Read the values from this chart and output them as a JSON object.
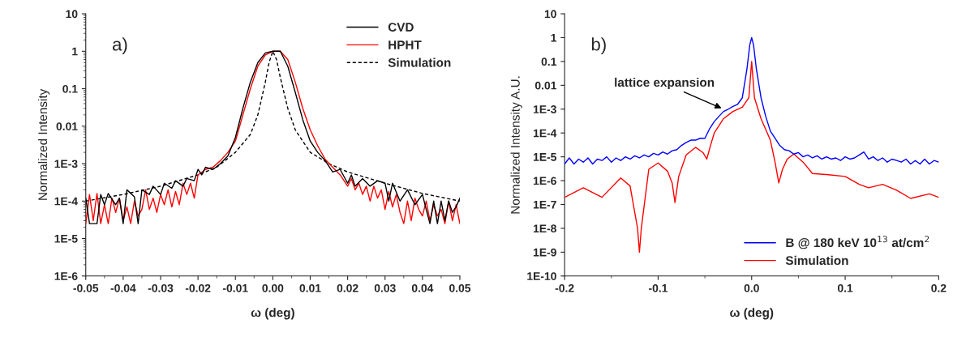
{
  "chart_data": [
    {
      "type": "line",
      "xlabel": "ω (deg)",
      "ylabel": "Normalized Intensity",
      "annotations": [
        "a)"
      ],
      "legend": "top right",
      "log": "y",
      "xlim": [
        -0.05,
        0.05
      ],
      "xticks": [
        {
          "value": -0.05,
          "label": "-0.05"
        },
        {
          "value": -0.04,
          "label": "-0.04"
        },
        {
          "value": -0.03,
          "label": "-0.03"
        },
        {
          "value": -0.02,
          "label": "-0.02"
        },
        {
          "value": -0.01,
          "label": "-0.01"
        },
        {
          "value": 0,
          "label": "0.00"
        },
        {
          "value": 0.01,
          "label": "0.01"
        },
        {
          "value": 0.02,
          "label": "0.02"
        },
        {
          "value": 0.03,
          "label": "0.03"
        },
        {
          "value": 0.04,
          "label": "0.04"
        },
        {
          "value": 0.05,
          "label": "0.05"
        }
      ],
      "ylim": [
        1e-06,
        10
      ],
      "yticks": [
        {
          "value": 1e-06,
          "label": "1E-6"
        },
        {
          "value": 1e-05,
          "label": "1E-5"
        },
        {
          "value": 0.0001,
          "label": "1E-4"
        },
        {
          "value": 0.001,
          "label": "1E-3"
        },
        {
          "value": 0.01,
          "label": "0.01"
        },
        {
          "value": 0.1,
          "label": "0.1"
        },
        {
          "value": 1,
          "label": "1"
        },
        {
          "value": 10,
          "label": "10"
        }
      ],
      "series": [
        {
          "name": "CVD",
          "color": "#000000",
          "line_style": "solid",
          "x": [
            -0.05,
            -0.049,
            -0.047,
            -0.046,
            -0.045,
            -0.044,
            -0.042,
            -0.041,
            -0.04,
            -0.039,
            -0.037,
            -0.036,
            -0.035,
            -0.033,
            -0.032,
            -0.03,
            -0.029,
            -0.027,
            -0.026,
            -0.024,
            -0.023,
            -0.021,
            -0.02,
            -0.019,
            -0.018,
            -0.016,
            -0.014,
            -0.012,
            -0.01,
            -0.008,
            -0.006,
            -0.004,
            -0.002,
            0,
            0.002,
            0.004,
            0.006,
            0.008,
            0.01,
            0.012,
            0.014,
            0.016,
            0.018,
            0.02,
            0.021,
            0.022,
            0.024,
            0.026,
            0.028,
            0.03,
            0.031,
            0.032,
            0.034,
            0.036,
            0.038,
            0.04,
            0.041,
            0.042,
            0.043,
            0.044,
            0.045,
            0.046,
            0.047,
            0.048,
            0.049,
            0.05
          ],
          "values": [
            0.00012,
            2.5e-05,
            2.5e-05,
            0.00015,
            8e-05,
            0.00016,
            8e-05,
            0.00012,
            2.5e-05,
            0.0002,
            0.00013,
            2.5e-05,
            0.0002,
            0.00015,
            0.00025,
            0.00015,
            0.0003,
            0.00022,
            0.00035,
            0.00025,
            0.0004,
            0.00035,
            0.0007,
            0.0005,
            0.0008,
            0.0007,
            0.001,
            0.0016,
            0.005,
            0.03,
            0.15,
            0.5,
            0.9,
            1,
            1,
            0.4,
            0.08,
            0.015,
            0.004,
            0.002,
            0.0012,
            0.0006,
            0.0007,
            0.0003,
            0.0005,
            0.00025,
            0.0004,
            0.00025,
            0.00035,
            0.0003,
            0.0001,
            0.0003,
            0.0001,
            0.0002,
            8e-05,
            0.00015,
            6e-05,
            2.5e-05,
            0.0001,
            2.5e-05,
            0.0001,
            3e-05,
            0.0001,
            5e-05,
            7e-05,
            0.00012
          ]
        },
        {
          "name": "HPHT",
          "color": "#ff0000",
          "line_style": "solid",
          "x": [
            -0.05,
            -0.049,
            -0.048,
            -0.047,
            -0.046,
            -0.045,
            -0.044,
            -0.043,
            -0.042,
            -0.041,
            -0.04,
            -0.039,
            -0.038,
            -0.037,
            -0.036,
            -0.035,
            -0.034,
            -0.033,
            -0.032,
            -0.031,
            -0.03,
            -0.029,
            -0.028,
            -0.027,
            -0.026,
            -0.025,
            -0.024,
            -0.023,
            -0.022,
            -0.021,
            -0.02,
            -0.018,
            -0.016,
            -0.014,
            -0.012,
            -0.01,
            -0.008,
            -0.006,
            -0.004,
            -0.002,
            0,
            0.002,
            0.004,
            0.006,
            0.008,
            0.01,
            0.012,
            0.014,
            0.016,
            0.018,
            0.02,
            0.021,
            0.022,
            0.023,
            0.024,
            0.025,
            0.026,
            0.027,
            0.028,
            0.029,
            0.03,
            0.031,
            0.032,
            0.033,
            0.034,
            0.035,
            0.036,
            0.037,
            0.038,
            0.039,
            0.04,
            0.041,
            0.042,
            0.043,
            0.044,
            0.045,
            0.046,
            0.047,
            0.048,
            0.049,
            0.05
          ],
          "values": [
            2.5e-05,
            0.00015,
            3e-05,
            0.00016,
            2.5e-05,
            8e-05,
            2.5e-05,
            0.00012,
            5e-05,
            0.00012,
            3e-05,
            7e-05,
            2.5e-05,
            0.0001,
            4e-05,
            6e-05,
            0.0002,
            6e-05,
            0.00012,
            5e-05,
            0.00015,
            8e-05,
            0.0002,
            7e-05,
            0.00018,
            8e-05,
            0.0003,
            0.00015,
            0.0003,
            0.00012,
            0.0005,
            0.0007,
            0.0008,
            0.0012,
            0.002,
            0.004,
            0.02,
            0.1,
            0.4,
            0.8,
            1,
            1,
            0.6,
            0.15,
            0.03,
            0.008,
            0.003,
            0.0013,
            0.0008,
            0.0005,
            0.00025,
            0.0004,
            0.0002,
            0.0003,
            0.00015,
            0.00025,
            0.0001,
            0.00025,
            0.00012,
            0.0002,
            6e-05,
            0.00018,
            7e-05,
            0.00015,
            5e-05,
            2.5e-05,
            0.0001,
            3e-05,
            0.00012,
            6e-05,
            4e-05,
            0.0001,
            3e-05,
            8e-05,
            4e-05,
            6e-05,
            2.5e-05,
            0.0001,
            3e-05,
            8e-05,
            2.5e-05
          ]
        },
        {
          "name": "Simulation",
          "color": "#000000",
          "line_style": "dashed",
          "x": [
            -0.05,
            -0.04,
            -0.03,
            -0.02,
            -0.015,
            -0.01,
            -0.006,
            -0.004,
            -0.002,
            -0.001,
            0,
            0.001,
            0.002,
            0.004,
            0.006,
            0.01,
            0.015,
            0.02,
            0.03,
            0.04,
            0.05
          ],
          "values": [
            0.0001,
            0.00015,
            0.00025,
            0.0005,
            0.0008,
            0.002,
            0.006,
            0.02,
            0.15,
            0.5,
            1,
            0.6,
            0.2,
            0.03,
            0.008,
            0.002,
            0.001,
            0.0006,
            0.0003,
            0.00016,
            0.0001
          ]
        }
      ]
    },
    {
      "type": "line",
      "xlabel": "ω (deg)",
      "ylabel": "Normalized Intensity A.U.",
      "legend": "bottom right",
      "log": "y",
      "annotations": [
        "b)",
        {
          "text": "lattice expansion",
          "x": -0.03,
          "y": 0.001
        }
      ],
      "xlim": [
        -0.2,
        0.2
      ],
      "xticks": [
        {
          "value": -0.2,
          "label": "-0.2"
        },
        {
          "value": -0.1,
          "label": "-0.1"
        },
        {
          "value": 0,
          "label": "0.0"
        },
        {
          "value": 0.1,
          "label": "0.1"
        },
        {
          "value": 0.2,
          "label": "0.2"
        }
      ],
      "ylim": [
        1e-10,
        10
      ],
      "yticks": [
        {
          "value": 1e-10,
          "label": "1E-10"
        },
        {
          "value": 1e-09,
          "label": "1E-9"
        },
        {
          "value": 1e-08,
          "label": "1E-8"
        },
        {
          "value": 1e-07,
          "label": "1E-7"
        },
        {
          "value": 1e-06,
          "label": "1E-6"
        },
        {
          "value": 1e-05,
          "label": "1E-5"
        },
        {
          "value": 0.0001,
          "label": "1E-4"
        },
        {
          "value": 0.001,
          "label": "1E-3"
        },
        {
          "value": 0.01,
          "label": "0.01"
        },
        {
          "value": 0.1,
          "label": "0.1"
        },
        {
          "value": 1,
          "label": "1"
        },
        {
          "value": 10,
          "label": "10"
        }
      ],
      "series": [
        {
          "name": "B @ 180 keV 10$^{13}$ at/cm$^{2}$",
          "color": "#0000ff",
          "line_style": "solid",
          "x": [
            -0.2,
            -0.195,
            -0.19,
            -0.185,
            -0.18,
            -0.175,
            -0.17,
            -0.165,
            -0.16,
            -0.155,
            -0.15,
            -0.145,
            -0.14,
            -0.135,
            -0.13,
            -0.125,
            -0.12,
            -0.115,
            -0.11,
            -0.105,
            -0.1,
            -0.095,
            -0.09,
            -0.085,
            -0.08,
            -0.075,
            -0.07,
            -0.065,
            -0.06,
            -0.055,
            -0.05,
            -0.045,
            -0.04,
            -0.035,
            -0.03,
            -0.025,
            -0.02,
            -0.015,
            -0.01,
            -0.005,
            -0.002,
            0,
            0.002,
            0.005,
            0.01,
            0.015,
            0.02,
            0.025,
            0.03,
            0.035,
            0.04,
            0.045,
            0.05,
            0.055,
            0.06,
            0.065,
            0.07,
            0.075,
            0.08,
            0.085,
            0.09,
            0.095,
            0.1,
            0.105,
            0.11,
            0.115,
            0.12,
            0.125,
            0.13,
            0.135,
            0.14,
            0.145,
            0.15,
            0.155,
            0.16,
            0.165,
            0.17,
            0.175,
            0.18,
            0.185,
            0.19,
            0.195,
            0.2
          ],
          "values": [
            5e-06,
            9e-06,
            5e-06,
            8e-06,
            6e-06,
            9e-06,
            5e-06,
            8e-06,
            7e-06,
            1e-05,
            6e-06,
            9e-06,
            7e-06,
            1e-05,
            8e-06,
            1.1e-05,
            9e-06,
            1.2e-05,
            1e-05,
            1.4e-05,
            1.2e-05,
            1.6e-05,
            1.3e-05,
            1.8e-05,
            2e-05,
            3e-05,
            4e-05,
            5e-05,
            5e-05,
            6e-05,
            6e-05,
            0.00015,
            0.0003,
            0.0005,
            0.0008,
            0.001,
            0.0013,
            0.0016,
            0.003,
            0.05,
            0.5,
            1,
            0.5,
            0.05,
            0.003,
            0.0005,
            0.00012,
            6e-05,
            3e-05,
            2e-05,
            1.8e-05,
            1.3e-05,
            1.5e-05,
            1e-05,
            1.2e-05,
            9e-06,
            1.1e-05,
            8e-06,
            1e-05,
            8e-06,
            9e-06,
            7e-06,
            1e-05,
            8e-06,
            9e-06,
            1.2e-05,
            1.6e-05,
            8e-06,
            1e-05,
            7e-06,
            9e-06,
            6e-06,
            8e-06,
            7e-06,
            6e-06,
            8e-06,
            5e-06,
            7e-06,
            5e-06,
            8e-06,
            5e-06,
            7e-06,
            6e-06
          ]
        },
        {
          "name": "Simulation",
          "color": "#ff0000",
          "line_style": "solid",
          "x": [
            -0.2,
            -0.18,
            -0.16,
            -0.14,
            -0.13,
            -0.122,
            -0.12,
            -0.118,
            -0.11,
            -0.1,
            -0.09,
            -0.085,
            -0.082,
            -0.078,
            -0.07,
            -0.06,
            -0.052,
            -0.048,
            -0.044,
            -0.04,
            -0.03,
            -0.02,
            -0.01,
            -0.003,
            0,
            0.003,
            0.01,
            0.02,
            0.025,
            0.029,
            0.033,
            0.038,
            0.045,
            0.055,
            0.065,
            0.08,
            0.1,
            0.115,
            0.125,
            0.14,
            0.155,
            0.17,
            0.19,
            0.2
          ],
          "values": [
            2e-07,
            5e-07,
            2e-07,
            1.3e-06,
            6e-07,
            1e-08,
            1e-09,
            1e-08,
            3e-06,
            5.5e-06,
            2.5e-06,
            8e-07,
            1.2e-07,
            1.5e-06,
            1.2e-05,
            2.5e-05,
            1.5e-05,
            8e-06,
            3e-05,
            0.0001,
            0.0004,
            0.0008,
            0.0012,
            0.003,
            0.1,
            0.003,
            0.0004,
            5e-05,
            6e-06,
            8e-07,
            3e-06,
            8e-06,
            1.3e-05,
            6e-06,
            2e-06,
            1.8e-06,
            1.5e-06,
            7e-07,
            5e-07,
            7e-07,
            4e-07,
            1.8e-07,
            2.8e-07,
            2e-07
          ]
        }
      ]
    }
  ]
}
